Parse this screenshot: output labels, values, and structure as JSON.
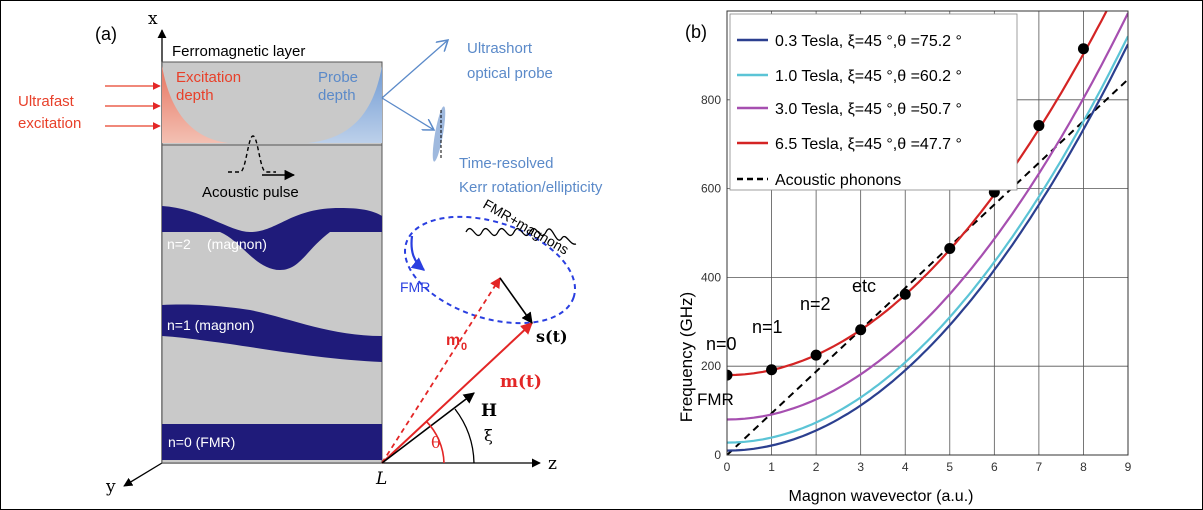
{
  "panel_a": {
    "label": "(a)",
    "layer_title": "Ferromagnetic layer",
    "ultrafast_line1": "Ultrafast",
    "ultrafast_line2": "excitation",
    "excitation_line1": "Excitation",
    "excitation_line2": "depth",
    "probe_line1": "Probe",
    "probe_line2": "depth",
    "optical_probe_line1": "Ultrashort",
    "optical_probe_line2": "optical probe",
    "kerr_line1": "Time-resolved",
    "kerr_line2": "Kerr rotation/ellipticity",
    "acoustic_pulse": "Acoustic pulse",
    "mode2": "n=2",
    "mode2_suffix": "(magnon)",
    "mode1": "n=1 (magnon)",
    "mode0": "n=0 (FMR)",
    "fmr_magnons": "FMR+magnons",
    "fmr": "FMR",
    "m0": "m",
    "m0_sub": "0",
    "mt": "m(t)",
    "st": "s(t)",
    "H": "H",
    "theta": "θ",
    "xi": "ξ",
    "axis_x": "x",
    "axis_y": "y",
    "axis_z": "z",
    "origin_L": "L",
    "colors": {
      "excitation": "#e8402a",
      "probe": "#5b8ac9",
      "magnon": "#1f1b7a",
      "layer": "#c9c9c9",
      "vector": "#e32626",
      "precession": "#2a3fe0"
    }
  },
  "panel_b": {
    "label": "(b)",
    "annotations": {
      "n0": "n=0",
      "n1": "n=1",
      "n2": "n=2",
      "etc": "etc",
      "fmr": "FMR"
    }
  },
  "chart_data": {
    "type": "line",
    "xlabel": "Magnon wavevector (a.u.)",
    "ylabel": "Frequency (GHz)",
    "xlim": [
      0,
      9
    ],
    "ylim": [
      0,
      1000
    ],
    "xticks": [
      0,
      1,
      2,
      3,
      4,
      5,
      6,
      7,
      8,
      9
    ],
    "yticks": [
      0,
      200,
      400,
      600,
      800
    ],
    "grid": true,
    "legend_position": "top-left",
    "series": [
      {
        "name": "0.3 Tesla,  ξ=45 °,θ =75.2 °",
        "color": "#2b3f8f",
        "f0": 10,
        "a": 11.3
      },
      {
        "name": "1.0 Tesla,  ξ=45 °,θ =60.2 °",
        "color": "#5bc4d6",
        "f0": 28,
        "a": 11.3
      },
      {
        "name": "3.0 Tesla,  ξ=45 °,θ =50.7 °",
        "color": "#a64fb0",
        "f0": 80,
        "a": 11.3
      },
      {
        "name": "6.5 Tesla,  ξ=45 °,θ =47.7 °",
        "color": "#d42424",
        "f0": 180,
        "a": 11.3
      }
    ],
    "acoustic_phonons": {
      "name": "Acoustic phonons",
      "slope": 94,
      "color": "#000000"
    },
    "points": {
      "x": [
        0,
        1,
        2,
        3,
        4,
        5,
        6,
        7,
        8
      ],
      "y": [
        180,
        192,
        225,
        282,
        362,
        465,
        592,
        742,
        915
      ]
    }
  }
}
